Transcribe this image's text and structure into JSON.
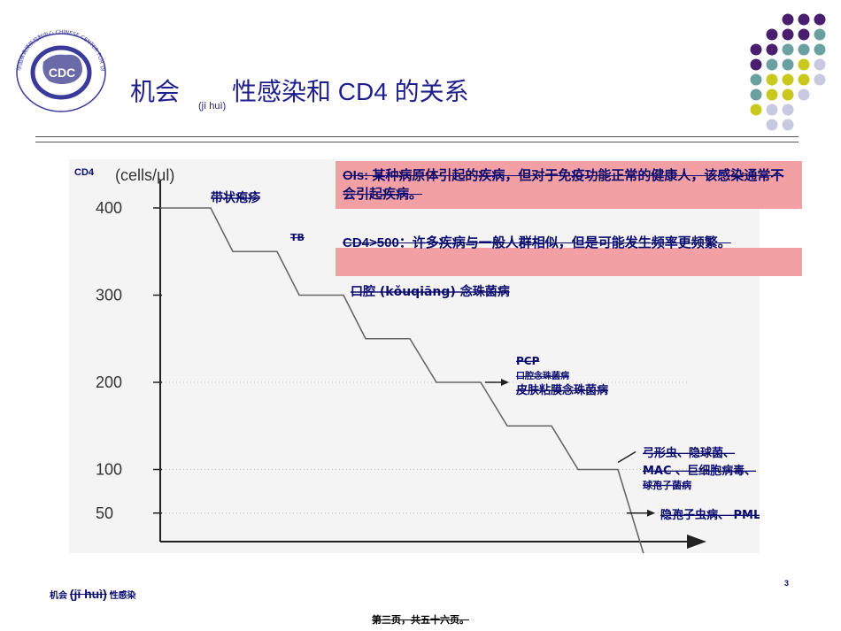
{
  "logo": {
    "ring_text": "中国疾病预防控制中心 CHINESE CENTER FOR DISEASE CONTROL AND PREVENTION",
    "center_text": "CDC"
  },
  "title": {
    "part1": "机会",
    "pinyin": "(jī huì)",
    "part2": "性感染和  CD4  的关系"
  },
  "chart_data": {
    "type": "line",
    "ylabel": "CD4",
    "yunit": "(cells/μl)",
    "yticks": [
      "400",
      "300",
      "200",
      "100",
      "50"
    ],
    "series": [
      {
        "values": [
          400,
          350,
          300,
          250,
          200,
          150,
          100,
          0
        ]
      }
    ],
    "annotations": [
      {
        "text": "带状疱疹",
        "at_cd4": 400
      },
      {
        "text": "TB",
        "at_cd4": 350
      },
      {
        "text": "口腔 (kǒuqiāng) 念珠菌病",
        "at_cd4": 300
      },
      {
        "text": "PCP",
        "at_cd4": 200
      },
      {
        "text": "口腔念珠菌病",
        "at_cd4": 200
      },
      {
        "text": "皮肤粘膜念珠菌病",
        "at_cd4": 200
      },
      {
        "text": "弓形虫、隐球菌、",
        "at_cd4": 100
      },
      {
        "text": "MAC 、巨细胞病毒、",
        "at_cd4": 100
      },
      {
        "text": "球孢子菌病",
        "at_cd4": 100
      },
      {
        "text": "隐孢子虫病、 PML",
        "at_cd4": 50
      }
    ]
  },
  "notes": {
    "ois": "OIs: 某种病原体引起的疾病，但对于免疫功能正常的健康人，该感染通常不会引起疾病。",
    "cd4": "CD4>500：许多疾病与一般人群相似，但是可能发生频率更频繁。"
  },
  "footer": {
    "left_a": "机会",
    "left_b": "(jī huì)",
    "left_c": "性感染",
    "page_num": "3",
    "page_text": "第三页，共五十六页。"
  },
  "colors": {
    "title": "#1e1e8c",
    "note_bg": "#f2a0a4",
    "dot_purple": "#4a1e6e",
    "dot_teal": "#6aa0a0",
    "dot_yellow": "#c8c81e",
    "dot_lavender": "#c8c8e0"
  }
}
